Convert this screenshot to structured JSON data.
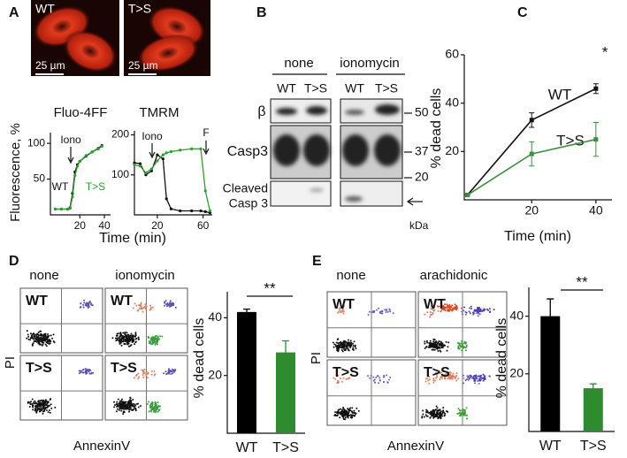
{
  "panel_labels": [
    "A",
    "B",
    "C",
    "D",
    "E"
  ],
  "panel_a": {
    "micrographs": [
      {
        "label": "WT",
        "scale": "25 µm"
      },
      {
        "label": "T>S",
        "scale": "25 µm"
      }
    ],
    "y_label": "Fluorescence, %",
    "x_label": "Time (min)"
  },
  "panel_b": {
    "conditions": [
      "none",
      "ionomycin"
    ],
    "lanes": [
      "WT",
      "T>S",
      "WT",
      "T>S"
    ],
    "rows": [
      "β",
      "Casp3",
      [
        "Cleaved",
        "Casp 3"
      ]
    ],
    "markers": [
      "50",
      "37",
      "20"
    ],
    "unit": "kDa"
  },
  "panel_d": {
    "conditions": [
      "none",
      "ionomycin"
    ],
    "samples": [
      "WT",
      "T>S"
    ],
    "y_label": "PI",
    "x_label": "AnnexinV"
  },
  "panel_e": {
    "conditions": [
      "none",
      "arachidonic"
    ],
    "samples": [
      "WT",
      "T>S"
    ],
    "y_label": "PI",
    "x_label": "AnnexinV"
  },
  "chart_data": [
    {
      "type": "line",
      "title": "Fluo-4FF",
      "x": [
        0,
        5,
        10,
        12,
        14,
        16,
        18,
        20,
        25,
        30,
        35,
        38
      ],
      "series": [
        {
          "name": "WT",
          "color": "#111111",
          "values": [
            8,
            8,
            8,
            10,
            30,
            60,
            70,
            75,
            82,
            88,
            93,
            97
          ]
        },
        {
          "name": "T>S",
          "color": "#2e9e2e",
          "values": [
            8,
            8,
            8,
            9,
            25,
            55,
            68,
            75,
            83,
            88,
            92,
            96
          ]
        }
      ],
      "xlim": [
        -4,
        45
      ],
      "xticks": [
        20,
        40
      ],
      "ylim": [
        0,
        115
      ],
      "yticks": [
        50,
        100
      ],
      "annotations": [
        {
          "text": "Iono",
          "color": "#111111"
        },
        {
          "text": "WT",
          "color": "#111111"
        },
        {
          "text": "T>S",
          "color": "#2e9e2e"
        }
      ]
    },
    {
      "type": "line",
      "title": "TMRM",
      "x": [
        0,
        5,
        10,
        15,
        20,
        25,
        28,
        32,
        40,
        50,
        58,
        62,
        66
      ],
      "series": [
        {
          "name": "WT",
          "color": "#111111",
          "values": [
            130,
            128,
            100,
            110,
            150,
            140,
            40,
            15,
            10,
            10,
            10,
            8,
            5
          ]
        },
        {
          "name": "T>S",
          "color": "#2e9e2e",
          "values": [
            125,
            122,
            105,
            115,
            135,
            150,
            155,
            158,
            162,
            165,
            165,
            60,
            10
          ]
        }
      ],
      "xlim": [
        0,
        68
      ],
      "xticks": [
        20,
        60
      ],
      "ylim": [
        0,
        210
      ],
      "yticks": [
        100,
        200
      ],
      "annotations": [
        {
          "text": "Iono",
          "color": "#111111"
        },
        {
          "text": "F",
          "color": "#111111"
        }
      ]
    },
    {
      "type": "line",
      "y_label": "% dead cells",
      "x_label": "Time (min)",
      "x": [
        0,
        20,
        40
      ],
      "series": [
        {
          "name": "WT",
          "color": "#111111",
          "values": [
            2,
            33,
            46
          ],
          "errors": [
            0,
            3,
            2
          ]
        },
        {
          "name": "T>S",
          "color": "#3a8f3a",
          "values": [
            2,
            19,
            25
          ],
          "errors": [
            0,
            5,
            7
          ]
        }
      ],
      "xlim": [
        -1,
        45
      ],
      "xticks": [
        20,
        40
      ],
      "ylim": [
        0,
        60
      ],
      "yticks": [
        20,
        40,
        60
      ],
      "annotations": [
        {
          "text": "WT",
          "color": "#111111"
        },
        {
          "text": "T>S",
          "color": "#111111"
        },
        {
          "text": "*",
          "color": "#111111"
        }
      ]
    },
    {
      "type": "bar",
      "y_label": "% dead cells",
      "categories": [
        "WT",
        "T>S"
      ],
      "values": [
        42,
        28
      ],
      "errors": [
        1,
        4
      ],
      "colors": [
        "#000000",
        "#2e8b2e"
      ],
      "ylim": [
        0,
        49
      ],
      "yticks": [
        20,
        40
      ],
      "annotations": [
        {
          "text": "**",
          "color": "#111111"
        }
      ]
    },
    {
      "type": "bar",
      "y_label": "% dead cells",
      "categories": [
        "WT",
        "T>S"
      ],
      "values": [
        40,
        15
      ],
      "errors": [
        6,
        1.5
      ],
      "colors": [
        "#000000",
        "#2e8b2e"
      ],
      "ylim": [
        0,
        50
      ],
      "yticks": [
        20,
        40
      ],
      "annotations": [
        {
          "text": "**",
          "color": "#111111"
        }
      ]
    }
  ]
}
